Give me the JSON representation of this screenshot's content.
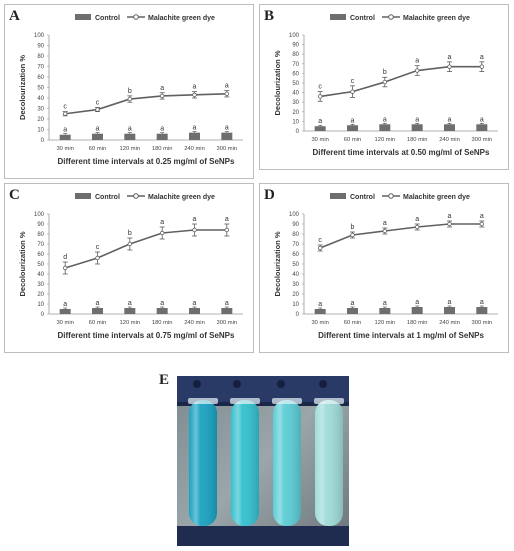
{
  "panels": [
    {
      "letter": "A"
    },
    {
      "letter": "B"
    },
    {
      "letter": "C"
    },
    {
      "letter": "D"
    }
  ],
  "photo": {
    "letter": "E",
    "tube_colors": [
      "#1aa3c2",
      "#34c1cf",
      "#5ccdd6",
      "#9fdcd9"
    ]
  },
  "chart_data": [
    {
      "type": "line",
      "title": "",
      "xlabel": "Different time intervals at 0.25 mg/ml of SeNPs",
      "ylabel": "Decolourization %",
      "categories": [
        "30 min",
        "60 min",
        "120 min",
        "180 min",
        "240 min",
        "300 min"
      ],
      "ylim": [
        0,
        100
      ],
      "yticks": [
        0,
        10,
        20,
        30,
        40,
        50,
        60,
        70,
        80,
        90,
        100
      ],
      "legend": {
        "position": "top",
        "entries": [
          "Control",
          "Malachite green dye"
        ]
      },
      "series": [
        {
          "name": "Control",
          "kind": "bar",
          "values": [
            5,
            6,
            6,
            6,
            7,
            7
          ],
          "errors": [
            1,
            1,
            1,
            1,
            1,
            1
          ],
          "letters": [
            "a",
            "a",
            "a",
            "a",
            "a",
            "a"
          ],
          "color": "#6e6e6e"
        },
        {
          "name": "Malachite green dye",
          "kind": "line",
          "values": [
            25,
            29,
            39,
            42,
            43,
            44
          ],
          "errors": [
            2,
            2,
            3,
            3,
            3,
            3
          ],
          "letters": [
            "c",
            "c",
            "b",
            "a",
            "a",
            "a"
          ],
          "color": "#606060"
        }
      ]
    },
    {
      "type": "line",
      "title": "",
      "xlabel": "Different time intervals at 0.50 mg/ml of SeNPs",
      "ylabel": "Decolourization %",
      "categories": [
        "30 min",
        "60 min",
        "120 min",
        "180 min",
        "240 min",
        "300 min"
      ],
      "ylim": [
        0,
        100
      ],
      "yticks": [
        0,
        10,
        20,
        30,
        40,
        50,
        60,
        70,
        80,
        90,
        100
      ],
      "legend": {
        "position": "top",
        "entries": [
          "Control",
          "Malachite green dye"
        ]
      },
      "series": [
        {
          "name": "Control",
          "kind": "bar",
          "values": [
            5,
            6,
            7,
            7,
            7,
            7
          ],
          "errors": [
            1,
            1,
            1,
            1,
            1,
            1
          ],
          "letters": [
            "a",
            "a",
            "a",
            "a",
            "a",
            "a"
          ],
          "color": "#6e6e6e"
        },
        {
          "name": "Malachite green dye",
          "kind": "line",
          "values": [
            36,
            41,
            51,
            63,
            67,
            67
          ],
          "errors": [
            5,
            6,
            5,
            5,
            5,
            5
          ],
          "letters": [
            "c",
            "c",
            "b",
            "a",
            "a",
            "a"
          ],
          "color": "#606060"
        }
      ]
    },
    {
      "type": "line",
      "title": "",
      "xlabel": "Different time intervals at 0.75 mg/ml of SeNPs",
      "ylabel": "Decolourization %",
      "categories": [
        "30 min",
        "60 min",
        "120 min",
        "180 min",
        "240 min",
        "300 min"
      ],
      "ylim": [
        0,
        100
      ],
      "yticks": [
        0,
        10,
        20,
        30,
        40,
        50,
        60,
        70,
        80,
        90,
        100
      ],
      "legend": {
        "position": "top",
        "entries": [
          "Control",
          "Malachite green dye"
        ]
      },
      "series": [
        {
          "name": "Control",
          "kind": "bar",
          "values": [
            5,
            6,
            6,
            6,
            6,
            6
          ],
          "errors": [
            1,
            1,
            1,
            1,
            1,
            1
          ],
          "letters": [
            "a",
            "a",
            "a",
            "a",
            "a",
            "a"
          ],
          "color": "#6e6e6e"
        },
        {
          "name": "Malachite green dye",
          "kind": "line",
          "values": [
            46,
            56,
            70,
            81,
            84,
            84
          ],
          "errors": [
            6,
            6,
            6,
            6,
            6,
            6
          ],
          "letters": [
            "d",
            "c",
            "b",
            "a",
            "a",
            "a"
          ],
          "color": "#606060"
        }
      ]
    },
    {
      "type": "line",
      "title": "",
      "xlabel": "Different time intervals at 1 mg/ml of SeNPs",
      "ylabel": "Decolourization %",
      "categories": [
        "30 min",
        "60 min",
        "120 min",
        "180 min",
        "240 min",
        "300 min"
      ],
      "ylim": [
        0,
        100
      ],
      "yticks": [
        0,
        10,
        20,
        30,
        40,
        50,
        60,
        70,
        80,
        90,
        100
      ],
      "legend": {
        "position": "top",
        "entries": [
          "Control",
          "Malachite green dye"
        ]
      },
      "series": [
        {
          "name": "Control",
          "kind": "bar",
          "values": [
            5,
            6,
            6,
            7,
            7,
            7
          ],
          "errors": [
            1,
            1,
            1,
            1,
            1,
            1
          ],
          "letters": [
            "a",
            "a",
            "a",
            "a",
            "a",
            "a"
          ],
          "color": "#6e6e6e"
        },
        {
          "name": "Malachite green dye",
          "kind": "line",
          "values": [
            66,
            79,
            83,
            87,
            90,
            90
          ],
          "errors": [
            3,
            3,
            3,
            3,
            3,
            3
          ],
          "letters": [
            "c",
            "b",
            "a",
            "a",
            "a",
            "a"
          ],
          "color": "#606060"
        }
      ]
    }
  ]
}
